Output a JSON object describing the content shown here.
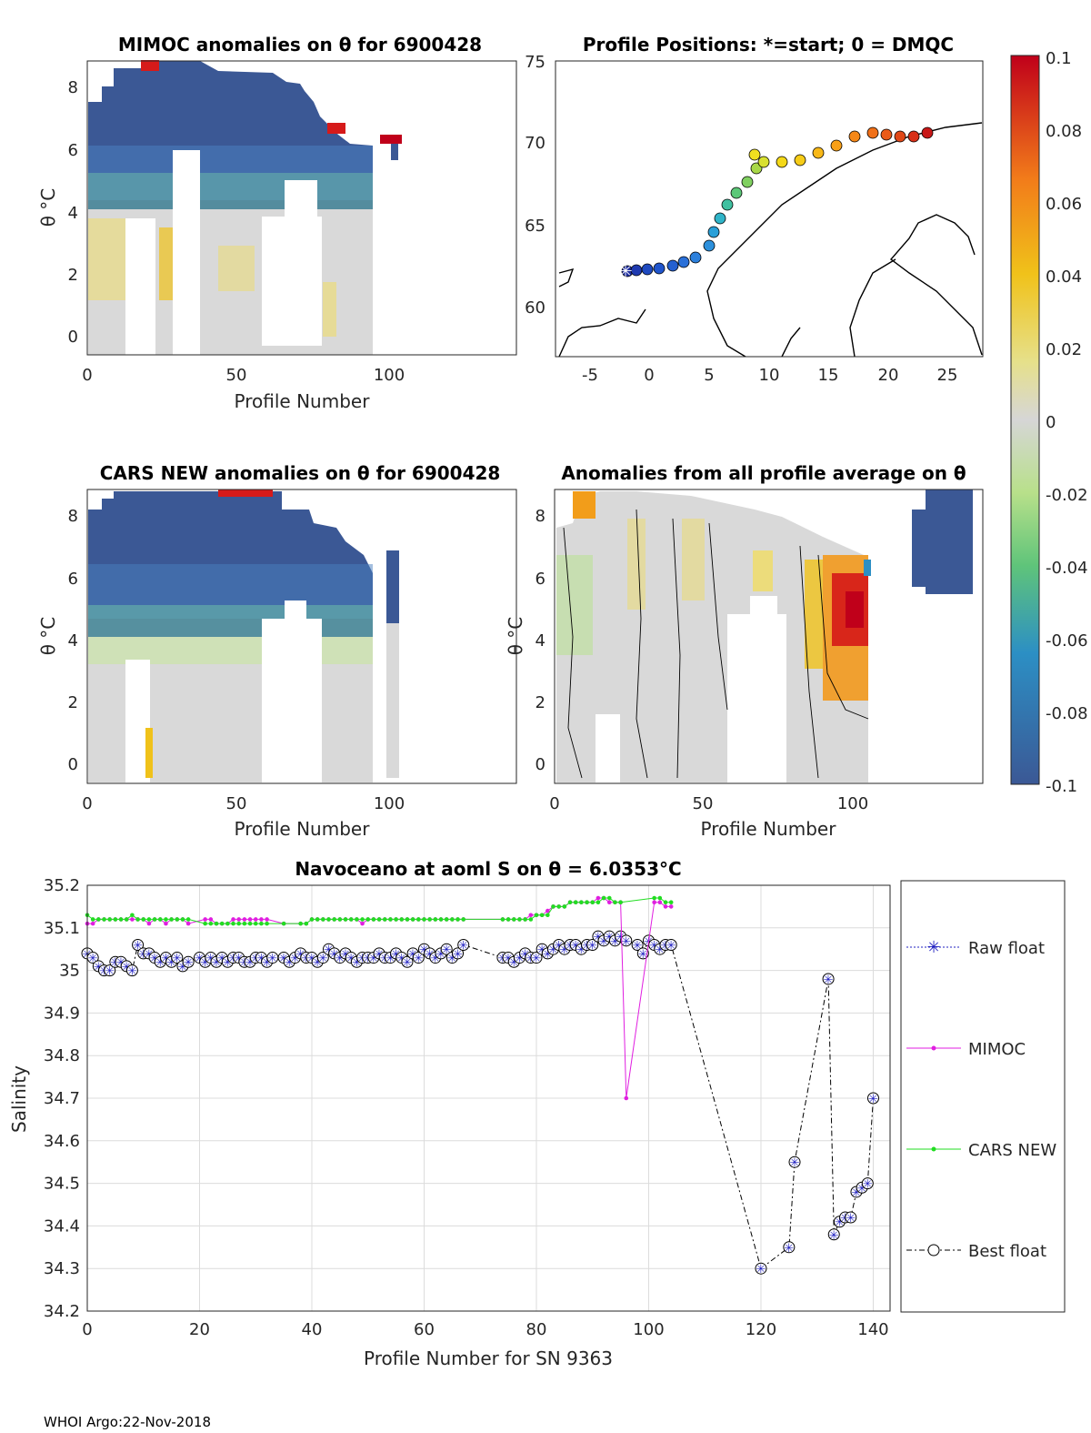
{
  "footer": "WHOI Argo:22-Nov-2018",
  "panels": {
    "mimoc": {
      "title": "MIMOC anomalies on θ  for 6900428",
      "xlabel": "Profile Number",
      "ylabel": "θ °C",
      "xticks": [
        "0",
        "50",
        "100"
      ],
      "yticks": [
        "0",
        "2",
        "4",
        "6",
        "8"
      ]
    },
    "positions": {
      "title": "Profile Positions: *=start; 0 = DMQC",
      "xticks": [
        "-5",
        "0",
        "5",
        "10",
        "15",
        "20",
        "25"
      ],
      "yticks": [
        "60",
        "65",
        "70",
        "75"
      ]
    },
    "cars": {
      "title": "CARS NEW anomalies on θ for 6900428",
      "xlabel": "Profile Number",
      "ylabel": "θ °C",
      "xticks": [
        "0",
        "50",
        "100"
      ],
      "yticks": [
        "0",
        "2",
        "4",
        "6",
        "8"
      ]
    },
    "average": {
      "title": "Anomalies from all profile average on θ",
      "xlabel": "Profile Number",
      "ylabel": "θ °C",
      "xticks": [
        "0",
        "50",
        "100"
      ],
      "yticks": [
        "0",
        "2",
        "4",
        "6",
        "8"
      ]
    }
  },
  "colorbar": {
    "ticks": [
      "0.1",
      "0.08",
      "0.06",
      "0.04",
      "0.02",
      "0",
      "-0.02",
      "-0.04",
      "-0.06",
      "-0.08",
      "-0.1"
    ],
    "colors": [
      "#c0001a",
      "#f27c1a",
      "#f0c21a",
      "#d6d6d6",
      "#5fc47a",
      "#2c8fc4",
      "#3b5895"
    ]
  },
  "chart_data": {
    "type": "line",
    "title": "Navoceano at aoml S on θ = 6.0353°C",
    "xlabel": "Profile Number for SN 9363",
    "ylabel": "Salinity",
    "xlim": [
      0,
      143
    ],
    "ylim": [
      34.2,
      35.2
    ],
    "xticks": [
      "0",
      "20",
      "40",
      "60",
      "80",
      "100",
      "120",
      "140"
    ],
    "yticks": [
      "34.2",
      "34.3",
      "34.4",
      "34.5",
      "34.6",
      "34.7",
      "34.8",
      "34.9",
      "35",
      "35.1",
      "35.2"
    ],
    "legend": {
      "raw": "Raw float",
      "mimoc": "MIMOC",
      "cars": "CARS NEW",
      "best": "Best float"
    },
    "series": [
      {
        "name": "Best float",
        "color": "#000000",
        "x": [
          0,
          1,
          2,
          3,
          4,
          5,
          6,
          7,
          8,
          9,
          10,
          11,
          12,
          13,
          14,
          15,
          16,
          17,
          18,
          20,
          21,
          22,
          23,
          24,
          25,
          26,
          27,
          28,
          29,
          30,
          31,
          32,
          33,
          35,
          36,
          37,
          38,
          39,
          40,
          41,
          42,
          43,
          44,
          45,
          46,
          47,
          48,
          49,
          50,
          51,
          52,
          53,
          54,
          55,
          56,
          57,
          58,
          59,
          60,
          61,
          62,
          63,
          64,
          65,
          66,
          67,
          74,
          75,
          76,
          77,
          78,
          79,
          80,
          81,
          82,
          83,
          84,
          85,
          86,
          87,
          88,
          89,
          90,
          91,
          92,
          93,
          94,
          95,
          96,
          98,
          99,
          100,
          101,
          102,
          103,
          104,
          120,
          125,
          126,
          132,
          133,
          134,
          135,
          136,
          137,
          138,
          139,
          140
        ],
        "values": [
          35.04,
          35.03,
          35.01,
          35.0,
          35.0,
          35.02,
          35.02,
          35.01,
          35.0,
          35.06,
          35.04,
          35.04,
          35.03,
          35.02,
          35.03,
          35.02,
          35.03,
          35.01,
          35.02,
          35.03,
          35.02,
          35.03,
          35.02,
          35.03,
          35.02,
          35.03,
          35.03,
          35.02,
          35.02,
          35.03,
          35.03,
          35.02,
          35.03,
          35.03,
          35.02,
          35.03,
          35.04,
          35.03,
          35.03,
          35.02,
          35.03,
          35.05,
          35.04,
          35.03,
          35.04,
          35.03,
          35.02,
          35.03,
          35.03,
          35.03,
          35.04,
          35.03,
          35.03,
          35.04,
          35.03,
          35.02,
          35.04,
          35.03,
          35.05,
          35.04,
          35.03,
          35.04,
          35.05,
          35.03,
          35.04,
          35.06,
          35.03,
          35.03,
          35.02,
          35.03,
          35.04,
          35.03,
          35.03,
          35.05,
          35.04,
          35.05,
          35.06,
          35.05,
          35.06,
          35.06,
          35.05,
          35.06,
          35.06,
          35.08,
          35.07,
          35.08,
          35.07,
          35.08,
          35.07,
          35.06,
          35.04,
          35.07,
          35.06,
          35.05,
          35.06,
          35.06,
          34.3,
          34.35,
          34.55,
          34.98,
          34.38,
          34.41,
          34.42,
          34.42,
          34.48,
          34.49,
          34.5,
          34.7
        ]
      },
      {
        "name": "MIMOC",
        "color": "#e01ee0",
        "x": [
          0,
          1,
          2,
          3,
          4,
          5,
          6,
          7,
          8,
          9,
          10,
          11,
          12,
          13,
          14,
          15,
          16,
          17,
          18,
          21,
          22,
          23,
          24,
          25,
          26,
          27,
          28,
          29,
          30,
          31,
          32,
          35,
          38,
          39,
          40,
          41,
          42,
          43,
          44,
          45,
          46,
          47,
          48,
          49,
          50,
          51,
          52,
          53,
          54,
          55,
          56,
          57,
          58,
          59,
          60,
          61,
          62,
          63,
          64,
          65,
          66,
          67,
          74,
          75,
          76,
          77,
          78,
          79,
          80,
          81,
          82,
          83,
          84,
          85,
          86,
          87,
          88,
          89,
          90,
          91,
          92,
          93,
          94,
          95,
          96,
          101,
          102,
          103,
          104
        ],
        "values": [
          35.11,
          35.11,
          35.12,
          35.12,
          35.12,
          35.12,
          35.12,
          35.12,
          35.12,
          35.12,
          35.12,
          35.11,
          35.12,
          35.12,
          35.11,
          35.12,
          35.12,
          35.12,
          35.11,
          35.12,
          35.12,
          35.11,
          35.11,
          35.11,
          35.12,
          35.12,
          35.12,
          35.12,
          35.12,
          35.12,
          35.12,
          35.11,
          35.11,
          35.11,
          35.12,
          35.12,
          35.12,
          35.12,
          35.12,
          35.12,
          35.12,
          35.12,
          35.12,
          35.11,
          35.12,
          35.12,
          35.12,
          35.12,
          35.12,
          35.12,
          35.12,
          35.12,
          35.12,
          35.12,
          35.12,
          35.12,
          35.12,
          35.12,
          35.12,
          35.12,
          35.12,
          35.12,
          35.12,
          35.12,
          35.12,
          35.12,
          35.12,
          35.13,
          35.13,
          35.13,
          35.14,
          35.15,
          35.15,
          35.15,
          35.16,
          35.16,
          35.16,
          35.16,
          35.16,
          35.17,
          35.17,
          35.16,
          35.16,
          35.16,
          34.7,
          35.16,
          35.16,
          35.15,
          35.15
        ]
      },
      {
        "name": "CARS NEW",
        "color": "#22dd22",
        "x": [
          0,
          1,
          2,
          3,
          4,
          5,
          6,
          7,
          8,
          9,
          10,
          11,
          12,
          13,
          14,
          15,
          16,
          17,
          18,
          21,
          22,
          23,
          24,
          25,
          26,
          27,
          28,
          29,
          30,
          31,
          32,
          35,
          38,
          39,
          40,
          41,
          42,
          43,
          44,
          45,
          46,
          47,
          48,
          49,
          50,
          51,
          52,
          53,
          54,
          55,
          56,
          57,
          58,
          59,
          60,
          61,
          62,
          63,
          64,
          65,
          66,
          67,
          74,
          75,
          76,
          77,
          78,
          79,
          80,
          81,
          82,
          83,
          84,
          85,
          86,
          87,
          88,
          89,
          90,
          91,
          92,
          93,
          94,
          95,
          101,
          102,
          103,
          104
        ],
        "values": [
          35.13,
          35.12,
          35.12,
          35.12,
          35.12,
          35.12,
          35.12,
          35.12,
          35.13,
          35.12,
          35.12,
          35.12,
          35.12,
          35.12,
          35.12,
          35.12,
          35.12,
          35.12,
          35.12,
          35.11,
          35.11,
          35.11,
          35.11,
          35.11,
          35.11,
          35.11,
          35.11,
          35.11,
          35.11,
          35.11,
          35.11,
          35.11,
          35.11,
          35.11,
          35.12,
          35.12,
          35.12,
          35.12,
          35.12,
          35.12,
          35.12,
          35.12,
          35.12,
          35.12,
          35.12,
          35.12,
          35.12,
          35.12,
          35.12,
          35.12,
          35.12,
          35.12,
          35.12,
          35.12,
          35.12,
          35.12,
          35.12,
          35.12,
          35.12,
          35.12,
          35.12,
          35.12,
          35.12,
          35.12,
          35.12,
          35.12,
          35.12,
          35.12,
          35.13,
          35.13,
          35.13,
          35.15,
          35.15,
          35.15,
          35.16,
          35.16,
          35.16,
          35.16,
          35.16,
          35.16,
          35.17,
          35.17,
          35.16,
          35.16,
          35.17,
          35.17,
          35.16,
          35.16
        ]
      }
    ]
  }
}
